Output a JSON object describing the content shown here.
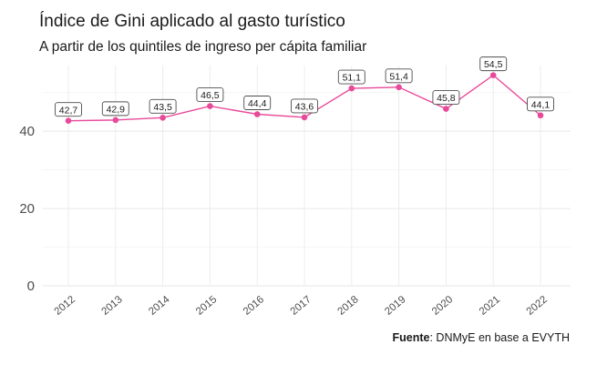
{
  "header": {
    "title": "Índice de Gini aplicado al gasto turístico",
    "subtitle": "A partir de los quintiles de ingreso per cápita familiar"
  },
  "caption": {
    "label": "Fuente",
    "text": ": DNMyE en base a EVYTH"
  },
  "chart_data": {
    "type": "line",
    "categories": [
      "2012",
      "2013",
      "2014",
      "2015",
      "2016",
      "2017",
      "2018",
      "2019",
      "2020",
      "2021",
      "2022"
    ],
    "values": [
      42.7,
      42.9,
      43.5,
      46.5,
      44.4,
      43.6,
      51.1,
      51.4,
      45.8,
      54.5,
      44.1
    ],
    "data_labels": [
      "42,7",
      "42,9",
      "43,5",
      "46,5",
      "44,4",
      "43,6",
      "51,1",
      "51,4",
      "45,8",
      "54,5",
      "44,1"
    ],
    "y_ticks": [
      0,
      20,
      40
    ],
    "y_tick_labels": [
      "0",
      "20",
      "40"
    ],
    "ylim": [
      0,
      57
    ],
    "grid": true,
    "legend": "none",
    "color": "#e84a9a"
  }
}
